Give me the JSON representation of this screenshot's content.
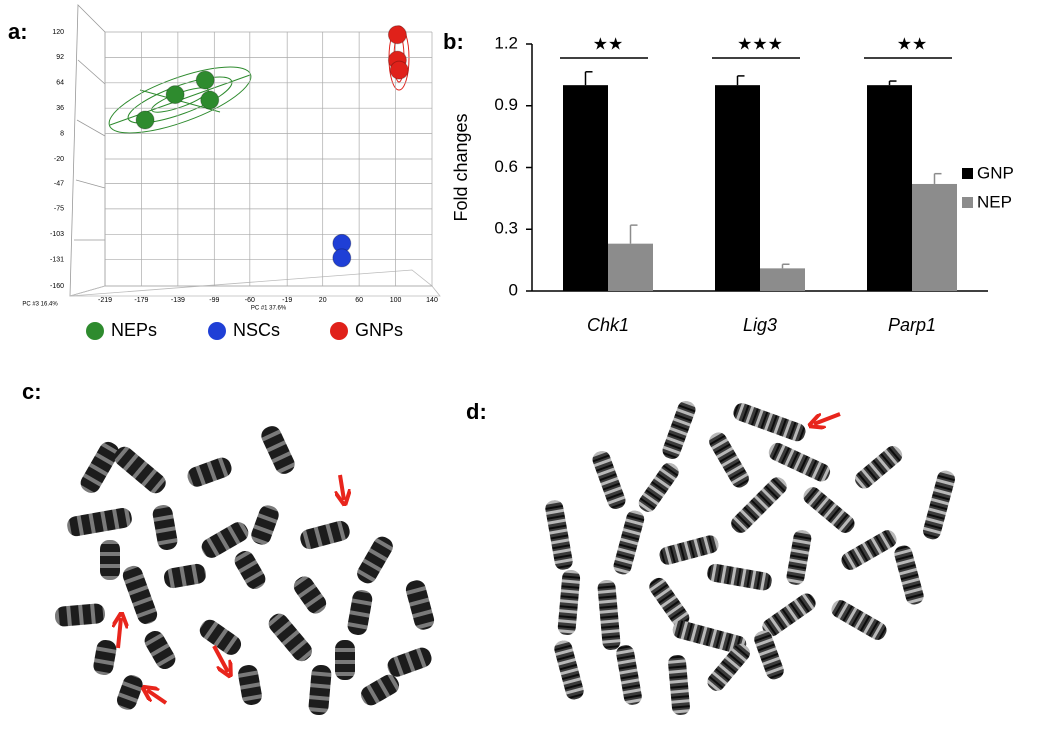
{
  "panel_labels": [
    "a:",
    "b:",
    "c:",
    "d:"
  ],
  "chart_data": [
    {
      "type": "scatter",
      "x_label": "PC #1 37.6%",
      "z_label": "PC #3 16.4%",
      "xlim": [
        -219,
        140
      ],
      "ylim": [
        -160,
        120
      ],
      "xticks": [
        -219,
        -179,
        -139,
        -99,
        -60,
        -19,
        20,
        60,
        100,
        140
      ],
      "yticks": [
        120,
        92,
        64,
        36,
        8,
        -20,
        -47,
        -75,
        -103,
        -131,
        -160
      ],
      "grid": true,
      "legend": "bottom",
      "series": [
        {
          "name": "NEPs",
          "color": "#2e8b2e",
          "x": [
            -175,
            -142,
            -109,
            -104
          ],
          "y": [
            23,
            51,
            67,
            45
          ]
        },
        {
          "name": "NSCs",
          "color": "#1f3fd6",
          "x": [
            41,
            41
          ],
          "y": [
            -113,
            -129
          ]
        },
        {
          "name": "GNPs",
          "color": "#e0211a",
          "x": [
            102,
            102,
            104
          ],
          "y": [
            117,
            89,
            78
          ]
        }
      ]
    },
    {
      "type": "bar",
      "ylabel": "Fold changes",
      "categories": [
        "Chk1",
        "Lig3",
        "Parp1"
      ],
      "series": [
        {
          "name": "GNP",
          "color": "#000000",
          "values": [
            1,
            1,
            1
          ],
          "errors": [
            0.065,
            0.045,
            0.02
          ]
        },
        {
          "name": "NEP",
          "color": "#8c8c8c",
          "values": [
            0.23,
            0.11,
            0.52
          ],
          "errors": [
            0.09,
            0.02,
            0.05
          ]
        }
      ],
      "ylim": [
        0,
        1.2
      ],
      "yticks": [
        0,
        0.3,
        0.6,
        0.9,
        1.2
      ],
      "annotations": [
        "★★",
        "★★★",
        "★★"
      ],
      "legend": "right"
    }
  ]
}
